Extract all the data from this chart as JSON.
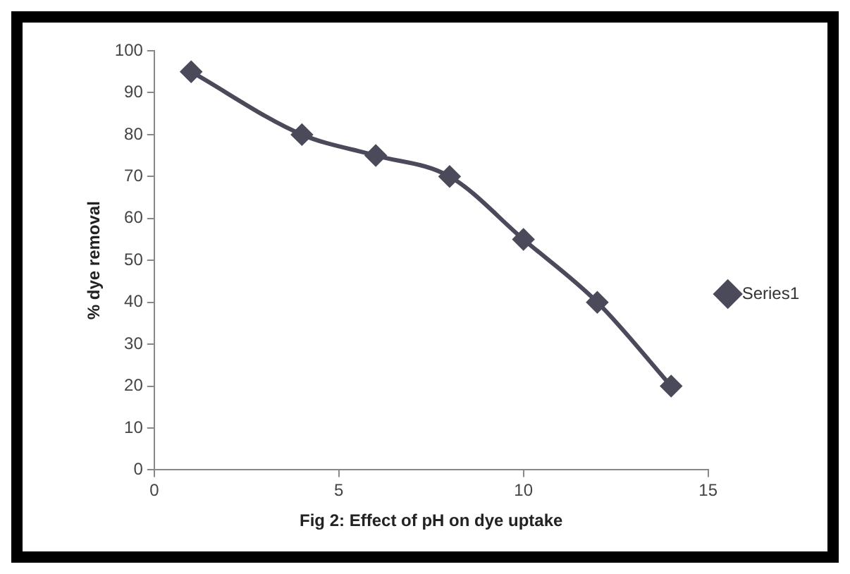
{
  "chart_data": {
    "type": "line",
    "xlabel": "Fig 2: Effect of pH on dye uptake",
    "ylabel": "% dye removal",
    "series": [
      {
        "name": "Series1",
        "color": "#4a4a5a",
        "x": [
          1,
          4,
          6,
          8,
          10,
          12,
          14
        ],
        "values": [
          95,
          80,
          75,
          70,
          55,
          40,
          20
        ]
      }
    ],
    "xlim": [
      0,
      15
    ],
    "xticks": [
      0,
      5,
      10,
      15
    ],
    "ylim": [
      0,
      100
    ],
    "yticks": [
      0,
      10,
      20,
      30,
      40,
      50,
      60,
      70,
      80,
      90,
      100
    ],
    "grid": false,
    "legend": "right",
    "marker": "diamond",
    "line_style": "solid"
  }
}
